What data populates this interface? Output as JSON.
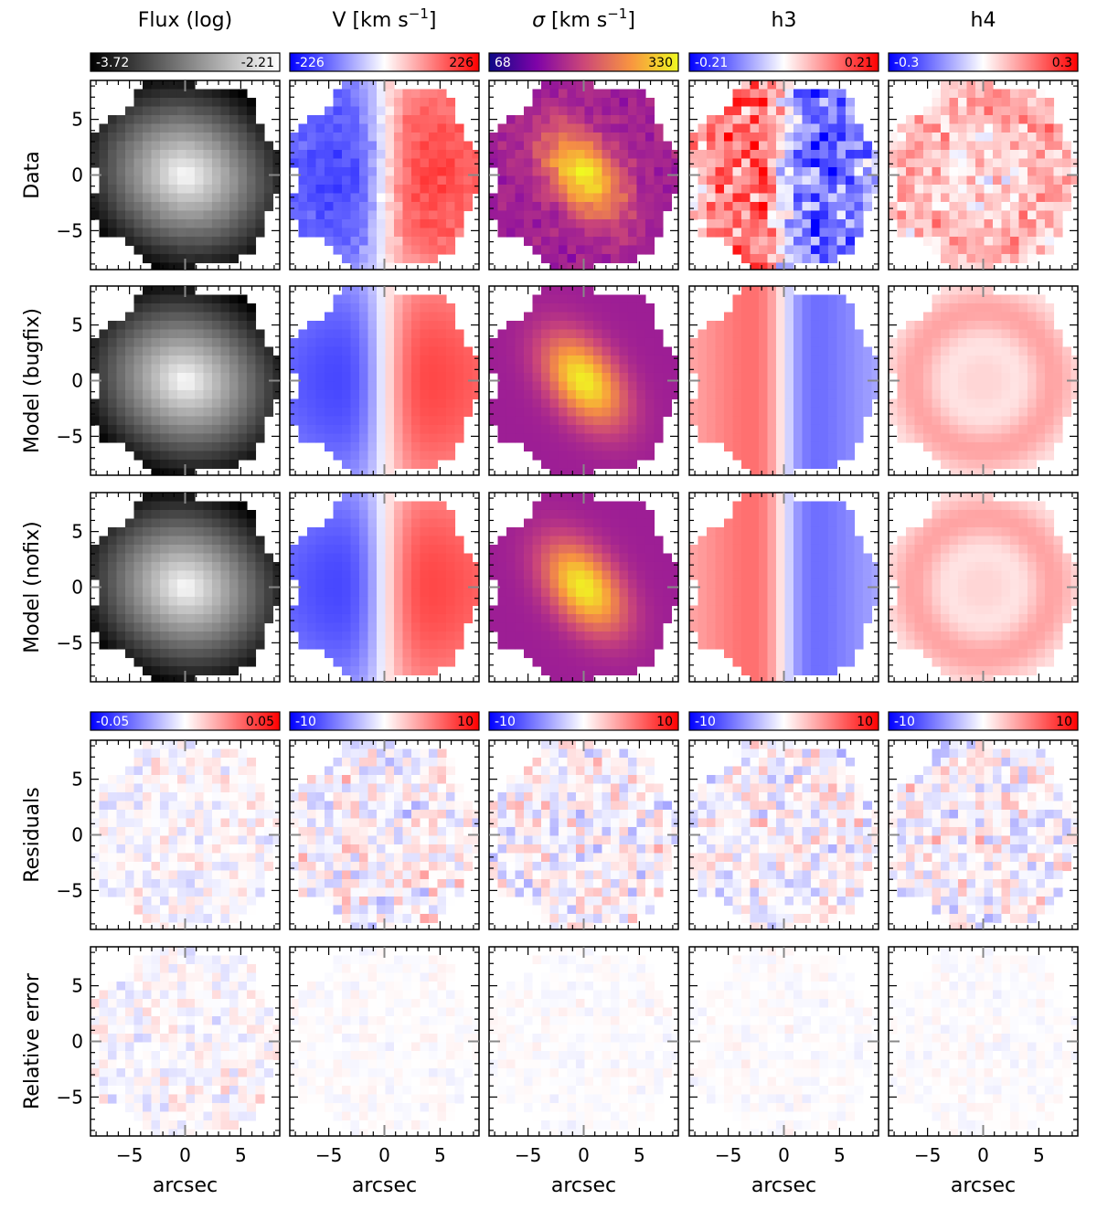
{
  "figure": {
    "columns": [
      {
        "key": "flux",
        "title": "Flux (log)"
      },
      {
        "key": "v",
        "title_main": "V [km s",
        "title_sup": "−1",
        "title_end": "]"
      },
      {
        "key": "sigma",
        "title_sym": "σ",
        "title_main": " [km s",
        "title_sup": "−1",
        "title_end": "]"
      },
      {
        "key": "h3",
        "title": "h3"
      },
      {
        "key": "h4",
        "title": "h4"
      }
    ],
    "rows": [
      "Data",
      "Model (bugfix)",
      "Model (nofix)",
      "Residuals",
      "Relative error"
    ],
    "xlabel": "arcsec"
  },
  "chart_data": {
    "type": "heatmap",
    "x_range": [
      -8.5,
      8.5
    ],
    "y_range": [
      -8.5,
      8.5
    ],
    "xticks": [
      -5,
      0,
      5
    ],
    "yticks": [
      -5,
      0,
      5
    ],
    "tick_labels": [
      "−5",
      "0",
      "5"
    ],
    "colorbars_top": [
      {
        "column": "flux",
        "min_label": "-3.72",
        "max_label": "-2.21",
        "colormap": "greys",
        "colors": [
          "#000000",
          "#ffffff"
        ]
      },
      {
        "column": "v",
        "min_label": "-226",
        "max_label": "226",
        "colormap": "bwr",
        "colors": [
          "#0000ff",
          "#ffffff",
          "#ff0000"
        ]
      },
      {
        "column": "sigma",
        "min_label": "68",
        "max_label": "330",
        "colormap": "plasma",
        "colors": [
          "#0d0887",
          "#7e03a8",
          "#cc4778",
          "#f89540",
          "#f0f921"
        ]
      },
      {
        "column": "h3",
        "min_label": "-0.21",
        "max_label": "0.21",
        "colormap": "bwr",
        "colors": [
          "#0000ff",
          "#ffffff",
          "#ff0000"
        ]
      },
      {
        "column": "h4",
        "min_label": "-0.3",
        "max_label": "0.3",
        "colormap": "bwr",
        "colors": [
          "#0000ff",
          "#ffffff",
          "#ff0000"
        ]
      }
    ],
    "colorbars_residual": [
      {
        "column": "flux",
        "min_label": "-0.05",
        "max_label": "0.05"
      },
      {
        "column": "v",
        "min_label": "-10",
        "max_label": "10"
      },
      {
        "column": "sigma",
        "min_label": "-10",
        "max_label": "10"
      },
      {
        "column": "h3",
        "min_label": "-10",
        "max_label": "10"
      },
      {
        "column": "h4",
        "min_label": "-10",
        "max_label": "10"
      }
    ]
  }
}
